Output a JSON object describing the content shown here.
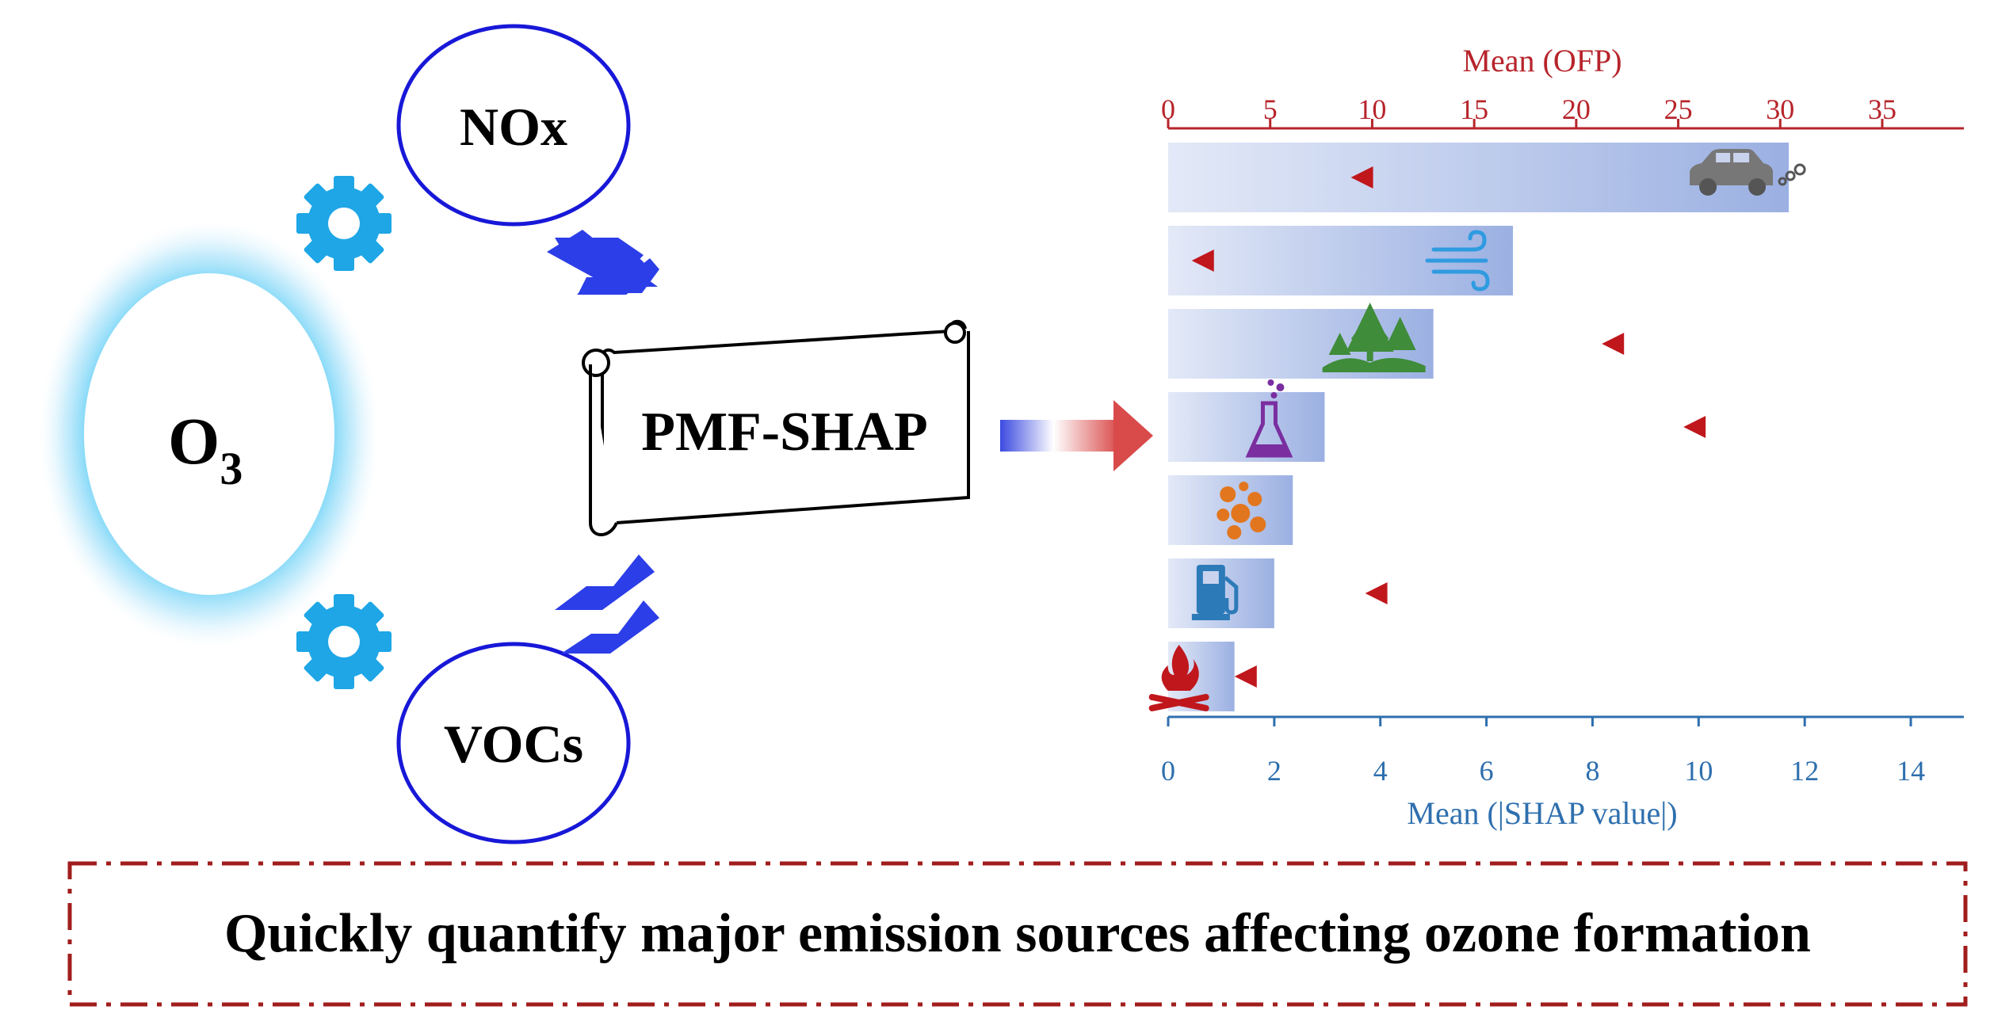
{
  "diagram": {
    "o3_label": "O",
    "o3_subscript": "3",
    "nox_label": "NOx",
    "vocs_label": "VOCs",
    "method_label": "PMF-SHAP",
    "caption": "Quickly quantify major emission sources affecting ozone formation"
  },
  "colors": {
    "bar_start": "#dde4f6",
    "bar_end": "#9fb2e3",
    "ofp_marker": "#c0171c",
    "top_axis": "#b7242b",
    "bottom_axis": "#2e6fae",
    "chevron": "#2c3ee8",
    "ellipse_stroke": "#1818d8",
    "gear": "#1ea6e6",
    "caption_border": "#a11d1d"
  },
  "chart_data": {
    "type": "bar",
    "orientation": "horizontal",
    "categories": [
      "Vehicle exhaust",
      "Wind-blown dust",
      "Biogenic",
      "Industrial solvent",
      "Industrial process",
      "Fuel evaporation",
      "Combustion"
    ],
    "icons": [
      "car-icon",
      "wind-icon",
      "trees-icon",
      "flask-icon",
      "bubbles-icon",
      "fuel-pump-icon",
      "fire-icon"
    ],
    "series": [
      {
        "name": "Mean (|SHAP value|)",
        "axis": "bottom",
        "values": [
          11.7,
          6.5,
          5.0,
          2.95,
          2.35,
          2.0,
          1.25
        ]
      },
      {
        "name": "Mean (OFP)",
        "axis": "top",
        "marker": "triangle-left",
        "values": [
          9.5,
          1.7,
          21.8,
          25.8,
          0,
          10.2,
          3.8
        ]
      }
    ],
    "top_axis": {
      "label": "Mean (OFP)",
      "lim": [
        0,
        39
      ],
      "ticks": [
        0,
        5,
        10,
        15,
        20,
        25,
        30,
        35
      ]
    },
    "bottom_axis": {
      "label": "Mean (|SHAP value|)",
      "lim": [
        0,
        15
      ],
      "ticks": [
        0,
        2,
        4,
        6,
        8,
        10,
        12,
        14
      ]
    }
  }
}
